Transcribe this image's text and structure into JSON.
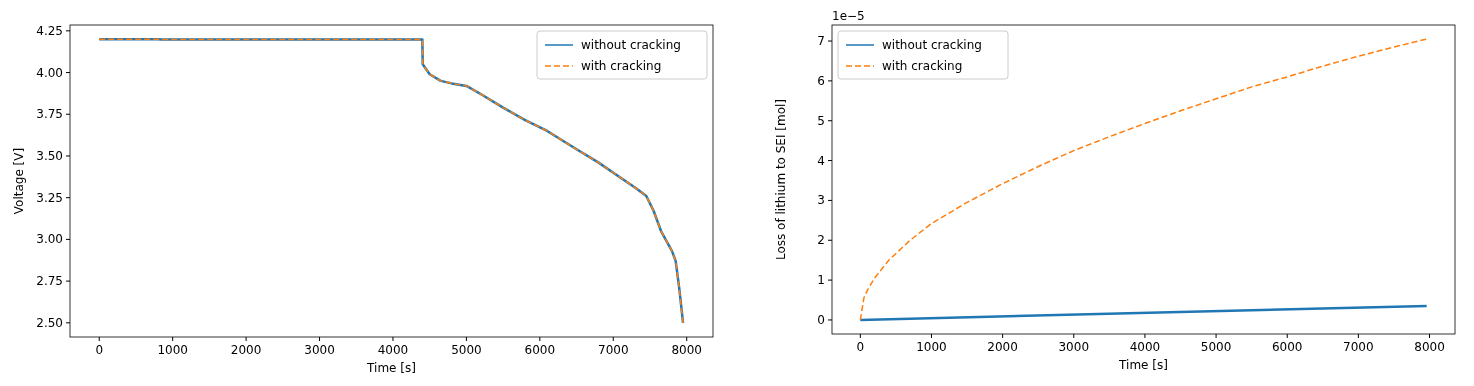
{
  "chart_data": [
    {
      "type": "line",
      "xlabel": "Time [s]",
      "ylabel": "Voltage [V]",
      "xlim": [
        -398,
        8358
      ],
      "ylim": [
        2.415,
        4.285
      ],
      "xticks": [
        0,
        1000,
        2000,
        3000,
        4000,
        5000,
        6000,
        7000,
        8000
      ],
      "yticks": [
        {
          "value": 2.5,
          "label": "2.50"
        },
        2.75,
        {
          "value": 3.0,
          "label": "3.00"
        },
        3.25,
        {
          "value": 3.5,
          "label": "3.50"
        },
        3.75,
        {
          "value": 4.0,
          "label": "4.00"
        },
        4.25
      ],
      "legend": "top right",
      "x": [
        0,
        800,
        850,
        4400,
        4405,
        4500,
        4650,
        4800,
        5000,
        5200,
        5500,
        5800,
        6100,
        6500,
        6800,
        7100,
        7300,
        7450,
        7550,
        7650,
        7800,
        7850,
        7900,
        7950
      ],
      "series": [
        {
          "name": "without cracking",
          "color": "#1f77b4",
          "line_style": "solid",
          "values": [
            4.2,
            4.2,
            4.198,
            4.198,
            4.05,
            3.99,
            3.95,
            3.935,
            3.92,
            3.87,
            3.79,
            3.715,
            3.65,
            3.54,
            3.46,
            3.37,
            3.31,
            3.26,
            3.17,
            3.05,
            2.93,
            2.87,
            2.7,
            2.5
          ]
        },
        {
          "name": "with cracking",
          "color": "#ff7f0e",
          "line_style": "dashed",
          "values": [
            4.2,
            4.2,
            4.198,
            4.198,
            4.05,
            3.99,
            3.95,
            3.935,
            3.92,
            3.87,
            3.79,
            3.715,
            3.65,
            3.54,
            3.46,
            3.37,
            3.31,
            3.26,
            3.17,
            3.05,
            2.93,
            2.87,
            2.7,
            2.5
          ]
        }
      ]
    },
    {
      "type": "line",
      "xlabel": "Time [s]",
      "ylabel": "Loss of lithium to SEI [mol]",
      "annotations": [
        "1e−5"
      ],
      "xlim": [
        -398,
        8358
      ],
      "ylim": [
        -0.3525,
        7.4025
      ],
      "xticks": [
        0,
        1000,
        2000,
        3000,
        4000,
        5000,
        6000,
        7000,
        8000
      ],
      "yticks": [
        0,
        1,
        2,
        3,
        4,
        5,
        6,
        7
      ],
      "legend": "top left",
      "series": [
        {
          "name": "without cracking",
          "color": "#1f77b4",
          "line_style": "solid",
          "x": [
            0,
            7960
          ],
          "values": [
            0,
            0.35
          ]
        },
        {
          "name": "with cracking",
          "color": "#ff7f0e",
          "line_style": "dashed",
          "x": [
            0,
            50,
            100,
            200,
            400,
            700,
            1000,
            1500,
            2000,
            2500,
            3000,
            3500,
            4000,
            4500,
            5000,
            5500,
            6000,
            6500,
            7000,
            7500,
            7960
          ],
          "values": [
            0,
            0.55,
            0.75,
            1.05,
            1.5,
            2.0,
            2.42,
            2.95,
            3.42,
            3.85,
            4.25,
            4.6,
            4.93,
            5.25,
            5.55,
            5.85,
            6.1,
            6.37,
            6.62,
            6.85,
            7.05
          ]
        }
      ]
    }
  ]
}
